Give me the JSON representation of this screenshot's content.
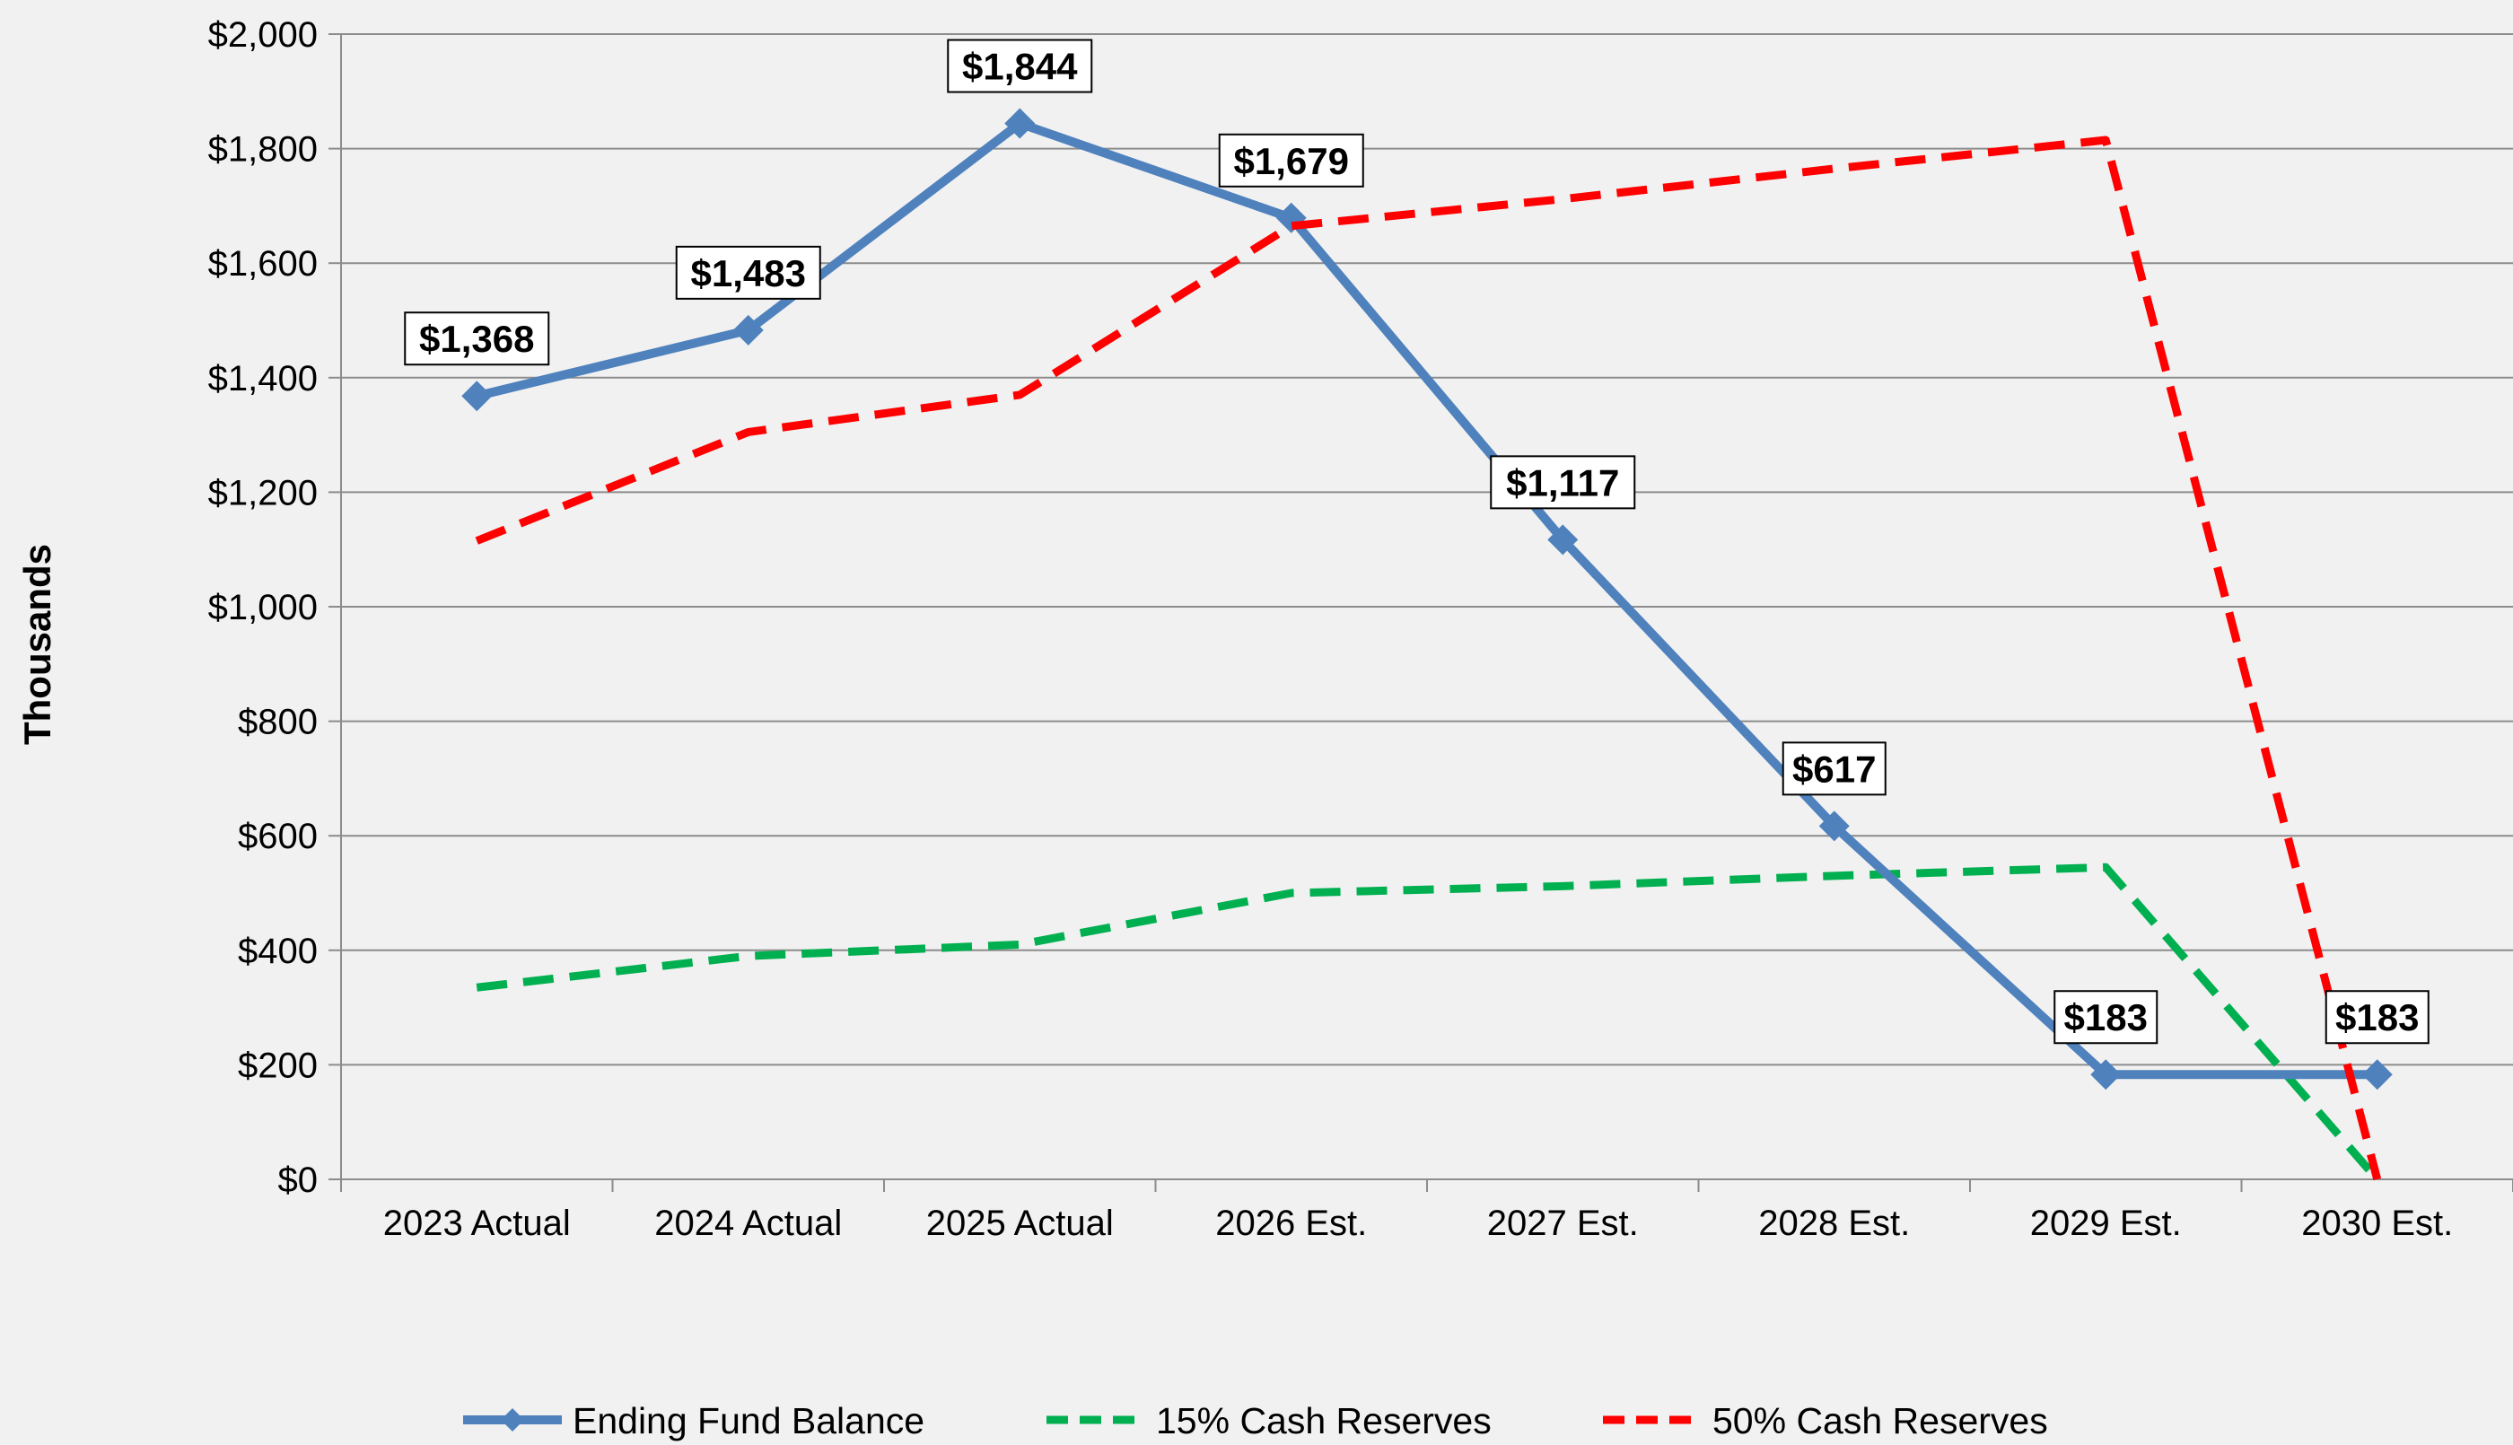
{
  "chart_data": {
    "type": "line",
    "categories": [
      "2023 Actual",
      "2024 Actual",
      "2025 Actual",
      "2026 Est.",
      "2027 Est.",
      "2028 Est.",
      "2029 Est.",
      "2030 Est."
    ],
    "series": [
      {
        "name": "Ending Fund Balance",
        "values": [
          1368,
          1483,
          1844,
          1679,
          1117,
          617,
          183,
          183
        ],
        "color": "#4f81bd",
        "style": "solid-with-diamond-markers",
        "data_labels": [
          "$1,368",
          "$1,483",
          "$1,844",
          "$1,679",
          "$1,117",
          "$617",
          "$183",
          "$183"
        ]
      },
      {
        "name": "15% Cash Reserves",
        "values": [
          335,
          390,
          410,
          500,
          512,
          530,
          545,
          0
        ],
        "color": "#00b050",
        "style": "dashed"
      },
      {
        "name": "50% Cash Reserves",
        "values": [
          1115,
          1305,
          1370,
          1665,
          1712,
          1765,
          1815,
          0
        ],
        "color": "#ff0000",
        "style": "dashed"
      }
    ],
    "ylabel": "Thousands",
    "ylim": [
      0,
      2000
    ],
    "yticks": [
      0,
      200,
      400,
      600,
      800,
      1000,
      1200,
      1400,
      1600,
      1800,
      2000
    ],
    "ytick_labels": [
      "$0",
      "$200",
      "$400",
      "$600",
      "$800",
      "$1,000",
      "$1,200",
      "$1,400",
      "$1,600",
      "$1,800",
      "$2,000"
    ],
    "grid": "horizontal",
    "legend_position": "bottom"
  }
}
